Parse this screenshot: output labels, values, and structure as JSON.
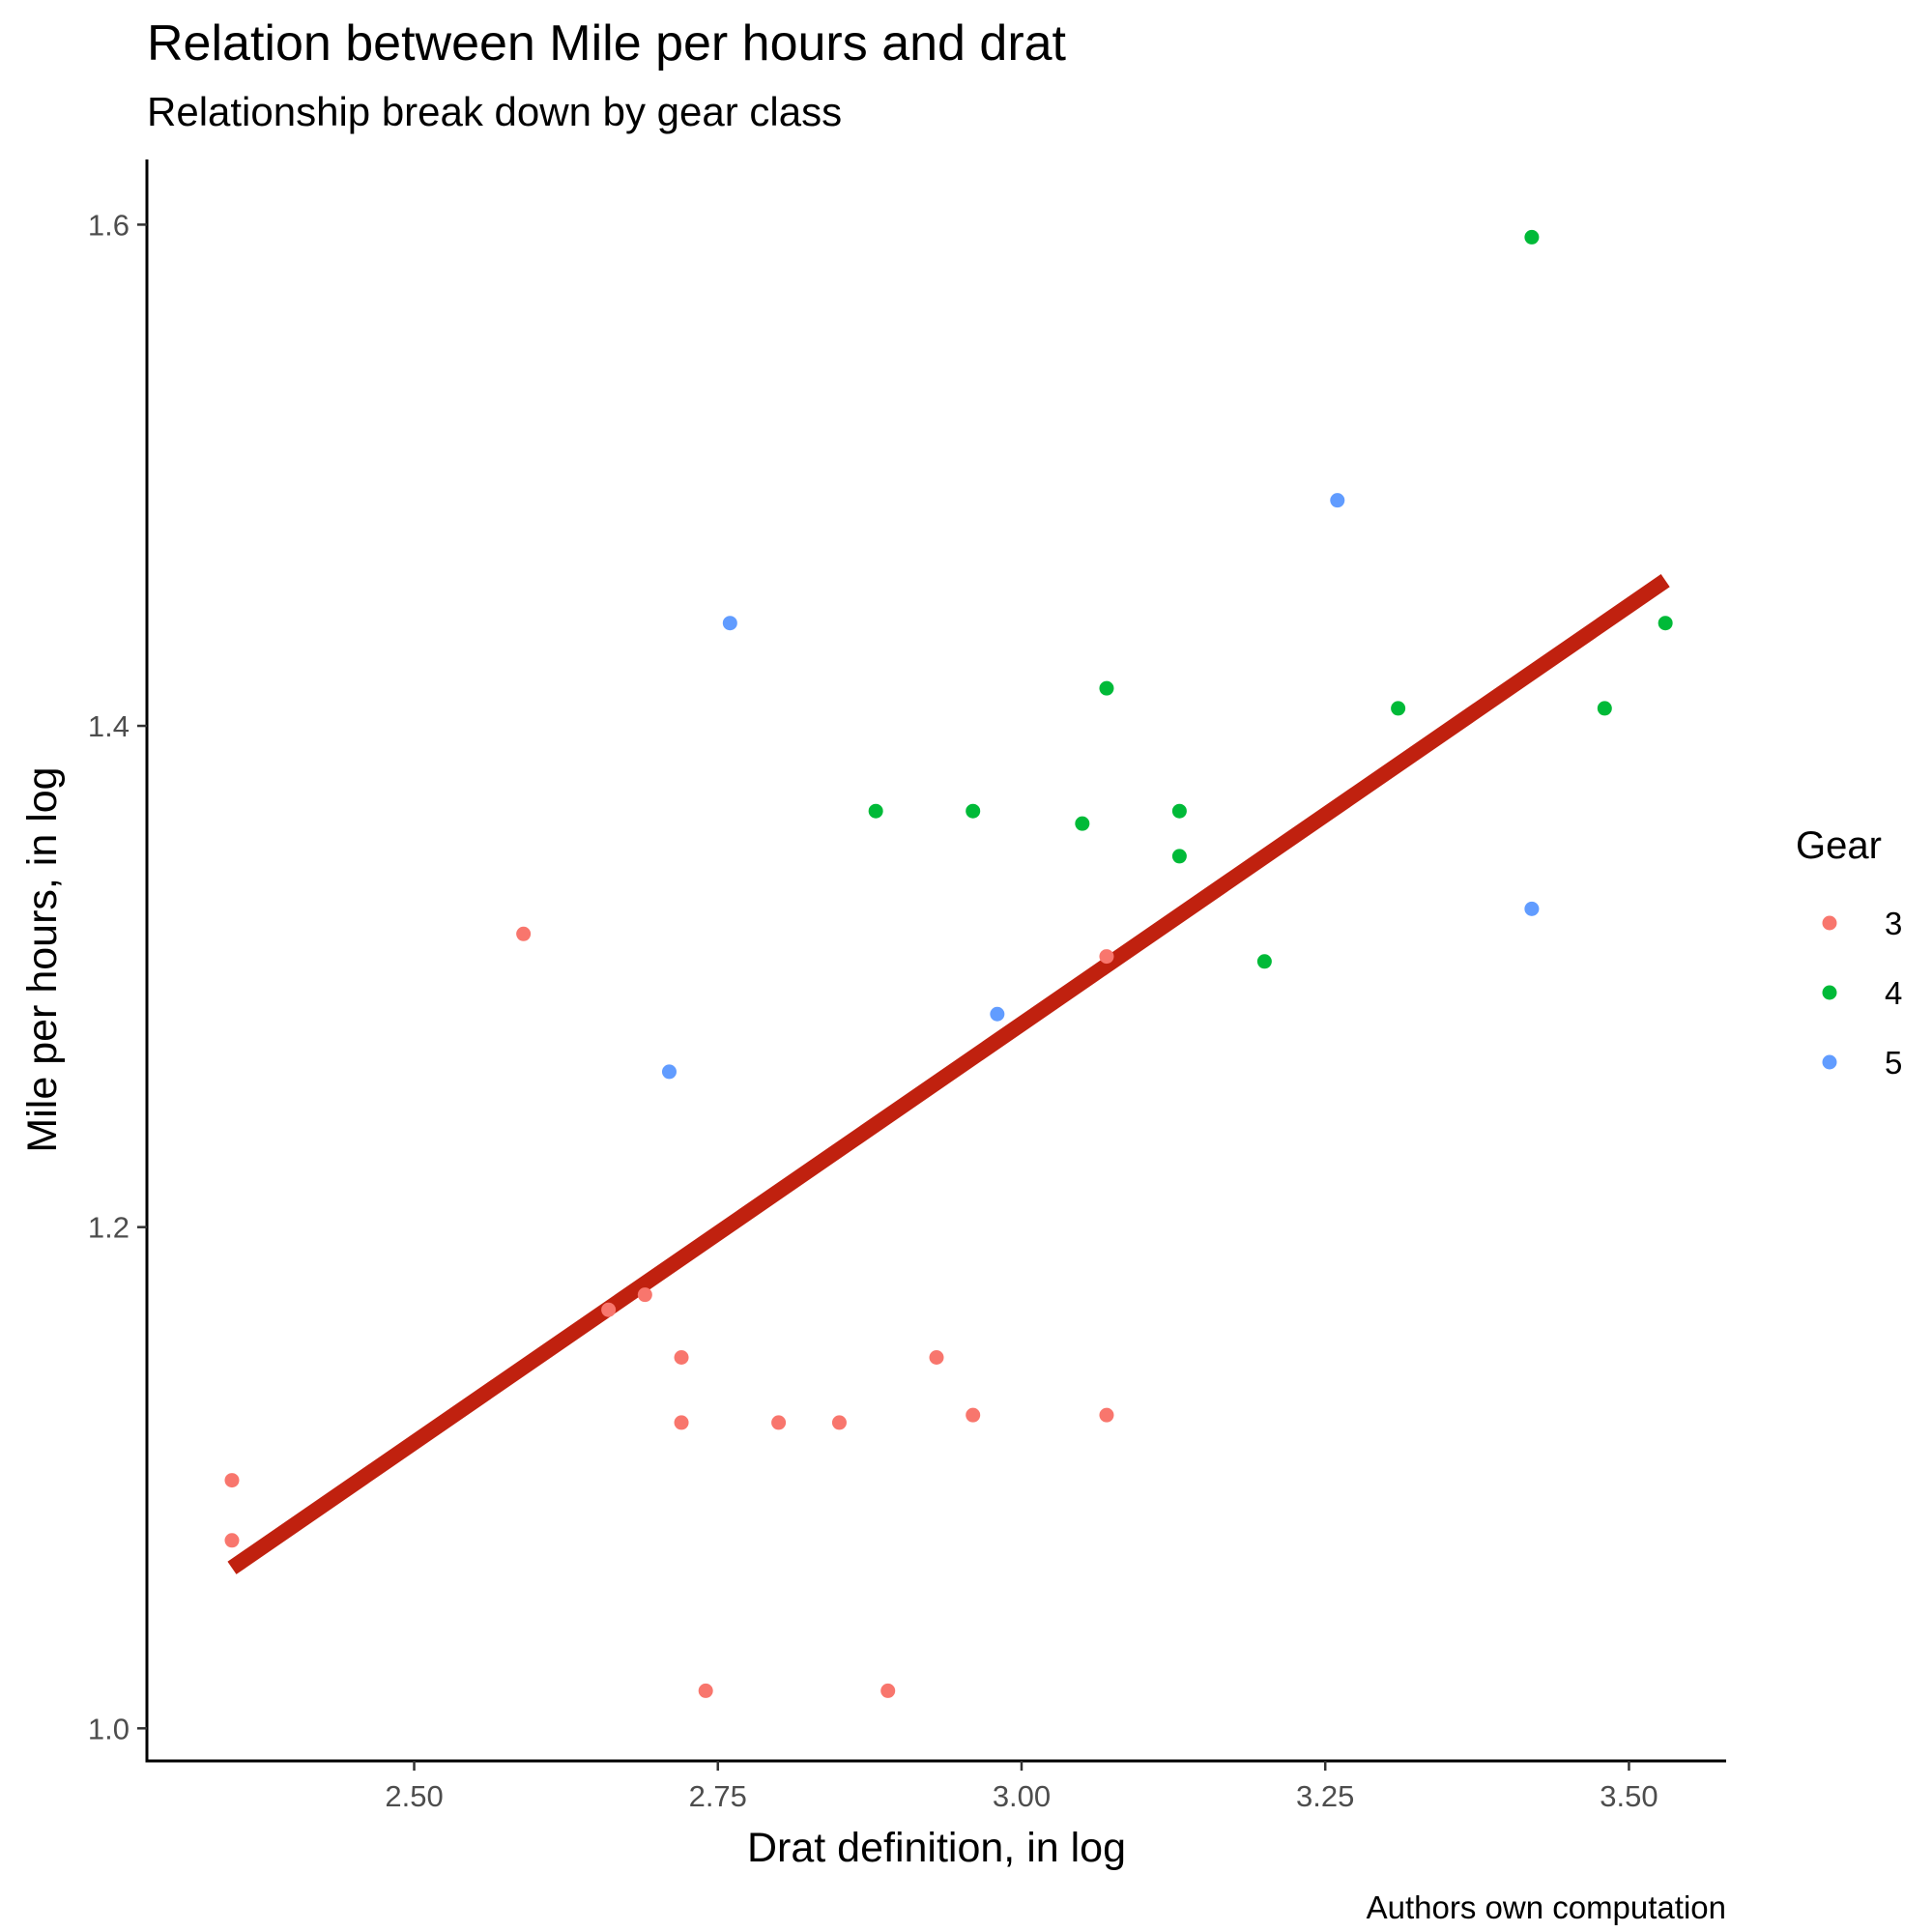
{
  "chart_data": {
    "type": "scatter",
    "title": "Relation between Mile per hours and drat",
    "subtitle": "Relationship break down by gear class",
    "xlabel": "Drat definition, in log",
    "ylabel": "Mile per hours, in log",
    "caption": "Authors own computation",
    "xlim": [
      2.28,
      3.58
    ],
    "ylim": [
      0.987,
      1.626
    ],
    "x_ticks": [
      2.5,
      2.75,
      3.0,
      3.25,
      3.5
    ],
    "x_tick_labels": [
      "2.50",
      "2.75",
      "3.00",
      "3.25",
      "3.50"
    ],
    "y_ticks": [
      1.0,
      1.2,
      1.4,
      1.6
    ],
    "y_tick_labels": [
      "1.0",
      "1.2",
      "1.4",
      "1.6"
    ],
    "grid": false,
    "legend": {
      "title": "Gear",
      "position": "right"
    },
    "series": [
      {
        "name": "3",
        "color": "#F8766D",
        "points": [
          [
            2.35,
            1.099
          ],
          [
            2.35,
            1.075
          ],
          [
            2.59,
            1.317
          ],
          [
            2.66,
            1.167
          ],
          [
            2.69,
            1.173
          ],
          [
            2.72,
            1.148
          ],
          [
            2.72,
            1.122
          ],
          [
            2.74,
            1.015
          ],
          [
            2.8,
            1.122
          ],
          [
            2.85,
            1.122
          ],
          [
            2.89,
            1.015
          ],
          [
            2.93,
            1.148
          ],
          [
            2.96,
            1.125
          ],
          [
            3.07,
            1.125
          ],
          [
            3.07,
            1.308
          ]
        ]
      },
      {
        "name": "4",
        "color": "#00BA38",
        "points": [
          [
            2.88,
            1.366
          ],
          [
            2.96,
            1.366
          ],
          [
            3.05,
            1.361
          ],
          [
            3.07,
            1.415
          ],
          [
            3.13,
            1.366
          ],
          [
            3.13,
            1.348
          ],
          [
            3.2,
            1.306
          ],
          [
            3.31,
            1.407
          ],
          [
            3.42,
            1.595
          ],
          [
            3.48,
            1.407
          ],
          [
            3.53,
            1.441
          ]
        ]
      },
      {
        "name": "5",
        "color": "#619CFF",
        "points": [
          [
            2.71,
            1.262
          ],
          [
            2.76,
            1.441
          ],
          [
            2.98,
            1.285
          ],
          [
            3.26,
            1.49
          ],
          [
            3.42,
            1.327
          ]
        ]
      }
    ],
    "trend_line": {
      "color": "#C0210F",
      "points": [
        [
          2.35,
          1.064
        ],
        [
          3.53,
          1.458
        ]
      ]
    }
  }
}
